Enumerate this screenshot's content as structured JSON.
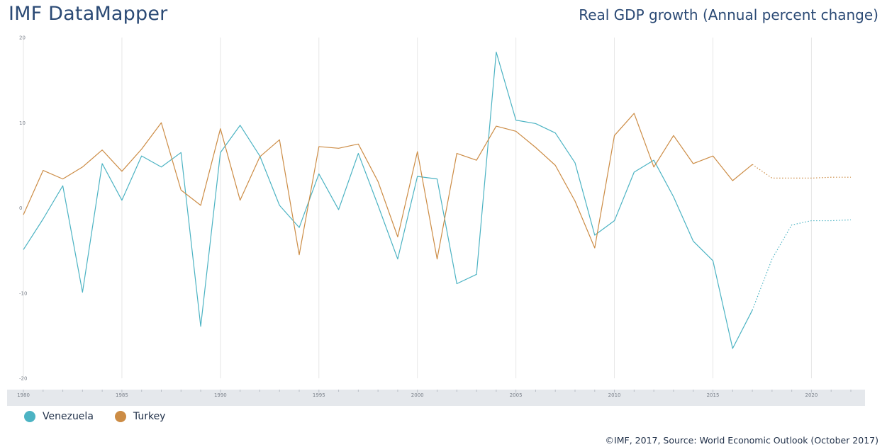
{
  "header": {
    "brand": "IMF DataMapper",
    "title": "Real GDP growth (Annual percent change)"
  },
  "source": "©IMF, 2017, Source: World Economic Outlook (October 2017)",
  "colors": {
    "venezuela": "#4cb3c3",
    "turkey": "#cc8c45",
    "grid": "#e6e6e6",
    "timeline_band": "#e5e8ec"
  },
  "chart_data": {
    "type": "line",
    "title": "Real GDP growth (Annual percent change)",
    "xlabel": "",
    "ylabel": "",
    "xlim": [
      1980,
      2022
    ],
    "ylim": [
      -20,
      20
    ],
    "y_ticks": [
      20,
      10,
      0,
      -10,
      -20
    ],
    "x_ticks": [
      1980,
      1985,
      1990,
      1995,
      2000,
      2005,
      2010,
      2015,
      2020
    ],
    "grid": true,
    "legend": "bottom-left",
    "projection_start": 2017,
    "x": [
      1980,
      1981,
      1982,
      1983,
      1984,
      1985,
      1986,
      1987,
      1988,
      1989,
      1990,
      1991,
      1992,
      1993,
      1994,
      1995,
      1996,
      1997,
      1998,
      1999,
      2000,
      2001,
      2002,
      2003,
      2004,
      2005,
      2006,
      2007,
      2008,
      2009,
      2010,
      2011,
      2012,
      2013,
      2014,
      2015,
      2016,
      2017,
      2018,
      2019,
      2020,
      2021,
      2022
    ],
    "series": [
      {
        "name": "Venezuela",
        "color": "#4cb3c3",
        "values": [
          -4.9,
          -1.3,
          2.6,
          -9.9,
          5.2,
          0.9,
          6.1,
          4.8,
          6.5,
          -13.9,
          6.5,
          9.7,
          6.1,
          0.3,
          -2.3,
          4.0,
          -0.2,
          6.4,
          0.3,
          -6.0,
          3.7,
          3.4,
          -8.9,
          -7.8,
          18.3,
          10.3,
          9.9,
          8.8,
          5.3,
          -3.2,
          -1.5,
          4.2,
          5.6,
          1.3,
          -3.9,
          -6.2,
          -16.5,
          -12.0,
          -6.0,
          -2.0,
          -1.5,
          -1.5,
          -1.4
        ]
      },
      {
        "name": "Turkey",
        "color": "#cc8c45",
        "values": [
          -0.8,
          4.4,
          3.4,
          4.8,
          6.8,
          4.3,
          6.9,
          10.0,
          2.1,
          0.3,
          9.3,
          0.9,
          6.0,
          8.0,
          -5.5,
          7.2,
          7.0,
          7.5,
          3.1,
          -3.4,
          6.6,
          -6.0,
          6.4,
          5.6,
          9.6,
          9.0,
          7.1,
          5.0,
          0.8,
          -4.7,
          8.5,
          11.1,
          4.8,
          8.5,
          5.2,
          6.1,
          3.2,
          5.1,
          3.5,
          3.5,
          3.5,
          3.6,
          3.6
        ]
      }
    ]
  }
}
